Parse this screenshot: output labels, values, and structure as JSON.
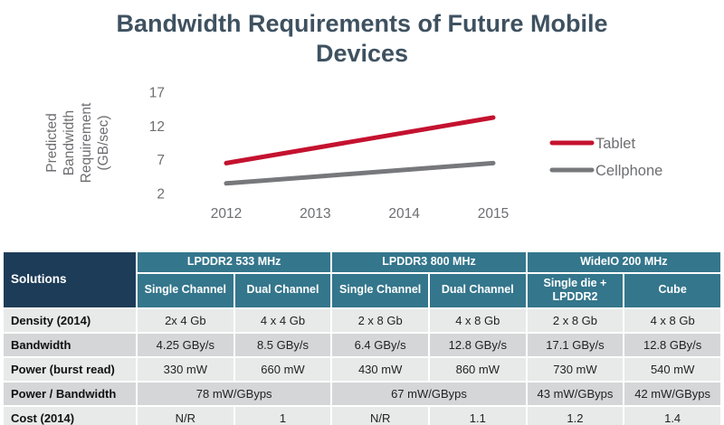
{
  "title": "Bandwidth Requirements of Future Mobile Devices",
  "palette": {
    "title": "#3e5160",
    "header-teal": "#34768c",
    "corner-navy": "#1d3c58",
    "row-light": "#e8e9e9",
    "row-dark": "#d5d6d8",
    "axis-gray": "#6d6e71"
  },
  "chart_data": {
    "type": "line",
    "x": [
      2012,
      2013,
      2014,
      2015
    ],
    "series": [
      {
        "name": "Tablet",
        "color": "#c4122f",
        "values": [
          6.5,
          8.75,
          11,
          13.25
        ]
      },
      {
        "name": "Cellphone",
        "color": "#77787b",
        "values": [
          3.5,
          4.5,
          5.5,
          6.5
        ]
      }
    ],
    "ylabel": "Predicted Bandwidth Requirement (GB/sec)",
    "yticks": [
      17,
      12,
      7,
      2
    ],
    "ylim": [
      2,
      17
    ],
    "grid": false,
    "legend_position": "right"
  },
  "table": {
    "corner_label": "Solutions",
    "groups": [
      "LPDDR2 533 MHz",
      "LPDDR3 800 MHz",
      "WideIO 200 MHz"
    ],
    "columns": [
      "Single Channel",
      "Dual Channel",
      "Single Channel",
      "Dual Channel",
      "Single die + LPDDR2",
      "Cube"
    ],
    "rows": [
      {
        "label": "Density (2014)",
        "cells": [
          "2x 4 Gb",
          "4 x 4 Gb",
          "2 x 8 Gb",
          "4 x 8 Gb",
          "2 x 8 Gb",
          "4 x 8 Gb"
        ]
      },
      {
        "label": "Bandwidth",
        "cells": [
          "4.25 GBy/s",
          "8.5 GBy/s",
          "6.4 GBy/s",
          "12.8 GBy/s",
          "17.1 GBy/s",
          "12.8 GBy/s"
        ]
      },
      {
        "label": "Power (burst read)",
        "cells": [
          "330 mW",
          "660 mW",
          "430 mW",
          "860 mW",
          "730 mW",
          "540 mW"
        ]
      },
      {
        "label": "Power / Bandwidth",
        "cells": [
          "78 mW/GByps",
          "67 mW/GByps",
          "43 mW/GByps",
          "42 mW/GByps"
        ]
      },
      {
        "label": "Cost (2014)",
        "cells": [
          "N/R",
          "1",
          "N/R",
          "1.1",
          "1.2",
          "1.4"
        ]
      }
    ]
  }
}
